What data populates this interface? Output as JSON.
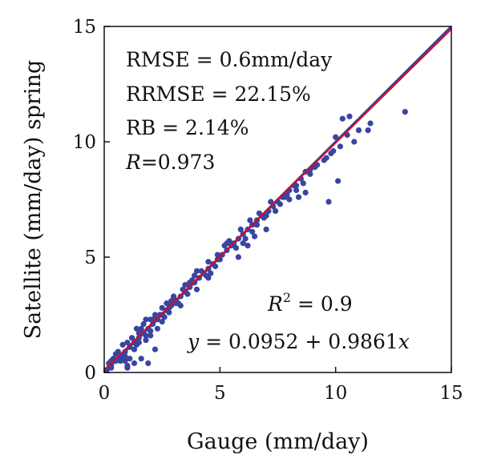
{
  "chart_data": {
    "type": "scatter",
    "xlabel": "Gauge (mm/day)",
    "ylabel": "Satellite (mm/day) spring",
    "xlim": [
      0,
      15
    ],
    "ylim": [
      0,
      15
    ],
    "x_ticks": [
      "0",
      "5",
      "10",
      "15"
    ],
    "y_ticks": [
      "0",
      "5",
      "10",
      "15"
    ],
    "grid": false,
    "legend": "none",
    "stats": {
      "rmse": "RMSE = 0.6mm/day",
      "rrmse": "RRMSE = 22.15%",
      "rb": "RB = 2.14%",
      "r_sym": "R",
      "r_val": "=0.973",
      "r2_sym": "R",
      "r2_exp": "2",
      "r2_val": " = 0.9",
      "eq_sym": "y",
      "eq_mid": " = 0.0952 + 0.9861",
      "eq_x": "x"
    },
    "colors": {
      "points": "#3a45a0",
      "fit_line": "#c8102e",
      "one_to_one": "#3a45a0"
    },
    "fit_line": {
      "intercept": 0.0952,
      "slope": 0.9861,
      "x_range": [
        0,
        15
      ]
    },
    "one_to_one": {
      "x_range": [
        0,
        15
      ]
    },
    "series": [
      {
        "x": [
          13.0,
          10.3,
          10.6,
          11.0,
          10.8,
          11.4,
          11.5,
          10.0,
          10.2,
          10.5,
          9.8,
          9.6,
          9.2,
          9.5,
          9.9,
          8.9,
          9.1,
          8.5,
          8.6,
          8.7,
          8.9,
          8.3,
          8.0,
          8.2,
          7.9,
          7.7,
          7.5,
          7.3,
          7.1,
          6.8,
          6.6,
          6.4,
          6.2,
          6.0,
          5.8,
          5.6,
          5.5,
          5.3,
          5.1,
          4.9,
          4.7,
          4.5,
          4.3,
          4.1,
          3.9,
          3.7,
          3.5,
          3.3,
          3.1,
          2.9,
          2.7,
          2.5,
          2.3,
          2.1,
          1.9,
          1.7,
          1.5,
          1.3,
          1.1,
          0.9,
          0.7,
          0.5,
          0.3,
          0.2,
          0.1,
          5.7,
          6.0,
          6.5,
          6.6,
          6.9,
          7.0,
          7.4,
          7.6,
          8.0,
          8.3,
          7.0,
          6.2,
          5.8,
          4.5,
          4.8,
          5.0,
          5.3,
          3.5,
          3.6,
          3.9,
          4.0,
          3.3,
          4.5,
          4.2,
          2.5,
          2.8,
          3.0,
          3.2,
          2.2,
          2.0,
          1.8,
          1.7,
          2.6,
          2.0,
          1.5,
          1.3,
          1.2,
          1.0,
          0.8,
          0.6,
          0.4,
          0.3,
          0.2,
          1.0,
          1.3,
          1.6,
          1.9,
          2.2,
          2.5,
          2.8,
          3.1,
          0.5,
          0.7,
          0.9,
          1.1,
          1.4,
          1.8,
          2.3,
          6.4,
          6.1,
          5.9,
          5.4,
          4.9,
          4.6,
          4.0,
          3.7,
          3.4,
          3.0,
          2.7,
          2.4,
          2.1,
          1.8,
          1.5,
          1.2,
          0.9,
          0.6,
          0.3,
          9.7,
          10.1,
          8.7,
          8.4,
          7.8,
          7.2,
          6.7,
          6.3,
          5.2,
          4.4,
          3.8,
          2.9,
          2.0,
          1.6,
          1.4,
          1.0,
          0.8
        ],
        "y": [
          11.3,
          11.0,
          11.1,
          10.5,
          10.0,
          10.5,
          10.8,
          10.2,
          9.8,
          10.3,
          9.5,
          9.3,
          9.0,
          9.2,
          9.6,
          8.6,
          8.9,
          8.4,
          8.2,
          8.7,
          8.8,
          8.1,
          7.9,
          8.1,
          7.7,
          7.6,
          7.4,
          7.2,
          7.0,
          6.8,
          6.6,
          6.4,
          6.2,
          6.0,
          5.8,
          5.6,
          5.5,
          5.3,
          5.1,
          4.9,
          4.7,
          4.5,
          4.3,
          4.1,
          3.9,
          3.7,
          3.5,
          3.3,
          3.1,
          2.9,
          2.7,
          2.5,
          2.3,
          2.1,
          1.9,
          1.7,
          1.5,
          1.3,
          1.1,
          0.9,
          0.7,
          0.5,
          0.3,
          0.2,
          0.1,
          5.4,
          5.6,
          5.9,
          6.4,
          6.7,
          6.8,
          7.0,
          7.3,
          7.5,
          7.9,
          6.2,
          5.5,
          5.0,
          4.8,
          4.6,
          4.9,
          5.6,
          3.8,
          3.4,
          4.2,
          3.6,
          2.9,
          4.1,
          4.4,
          2.8,
          2.6,
          3.2,
          3.0,
          2.5,
          1.6,
          1.4,
          2.1,
          2.4,
          1.8,
          1.7,
          1.0,
          1.5,
          1.3,
          0.6,
          0.9,
          0.6,
          0.2,
          0.4,
          0.2,
          0.4,
          0.6,
          0.4,
          1.0,
          2.2,
          2.8,
          3.0,
          0.8,
          0.5,
          0.5,
          0.6,
          1.9,
          2.3,
          1.9,
          6.1,
          5.8,
          6.2,
          5.7,
          5.1,
          4.3,
          4.4,
          3.9,
          3.6,
          3.3,
          3.0,
          2.5,
          2.3,
          1.6,
          1.3,
          1.5,
          0.7,
          0.8,
          0.5,
          7.4,
          8.3,
          7.8,
          7.6,
          7.6,
          7.4,
          6.9,
          6.6,
          5.5,
          4.2,
          4.0,
          3.1,
          2.3,
          1.9,
          1.2,
          0.3,
          1.2
        ]
      }
    ]
  }
}
